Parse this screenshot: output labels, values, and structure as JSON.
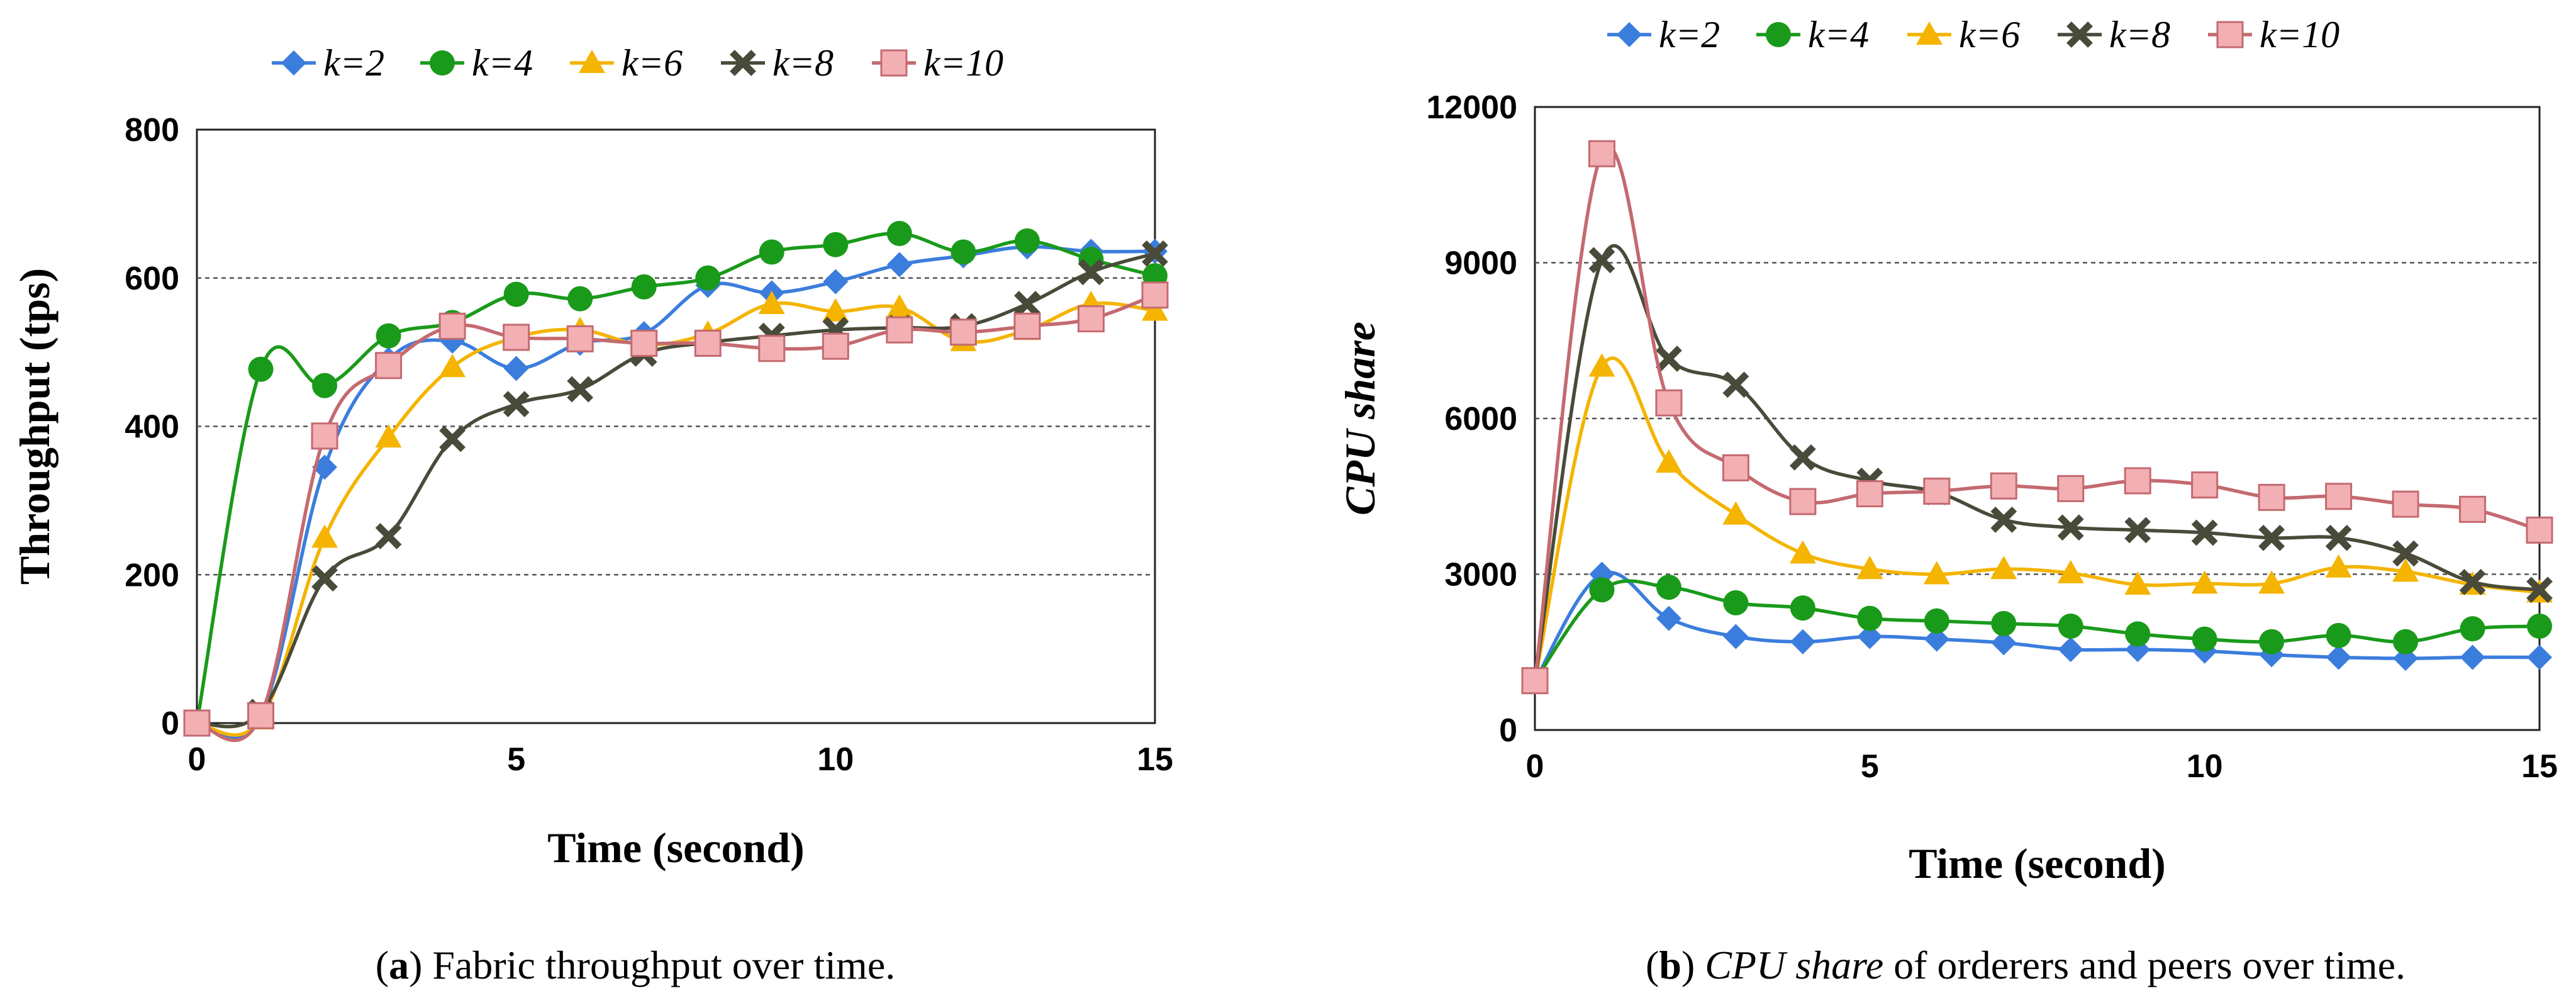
{
  "legend_labels": [
    "k=2",
    "k=4",
    "k=6",
    "k=8",
    "k=10"
  ],
  "series_styles": [
    {
      "name": "k=2",
      "color": "#3b7ddd",
      "marker": "diamond"
    },
    {
      "name": "k=4",
      "color": "#1a9a1a",
      "marker": "circle"
    },
    {
      "name": "k=6",
      "color": "#f4b400",
      "marker": "triangle"
    },
    {
      "name": "k=8",
      "color": "#4a4a3a",
      "marker": "x"
    },
    {
      "name": "k=10",
      "color": "#c46a70",
      "marker": "square",
      "fill": "#f2b0b4"
    }
  ],
  "chart_data": [
    {
      "type": "line",
      "x": [
        0,
        1,
        2,
        3,
        4,
        5,
        6,
        7,
        8,
        9,
        10,
        11,
        12,
        13,
        14,
        15
      ],
      "xlim": [
        0,
        15
      ],
      "xticks": [
        0,
        5,
        10,
        15
      ],
      "ylim": [
        0,
        800
      ],
      "yticks": [
        0,
        200,
        400,
        600,
        800
      ],
      "xlabel": "Time (second)",
      "ylabel": "Throughput (tps)",
      "grid": "horizontal dashed",
      "series": [
        {
          "name": "k=2",
          "values": [
            0,
            10,
            345,
            490,
            515,
            478,
            512,
            525,
            590,
            580,
            595,
            618,
            630,
            642,
            636,
            636
          ]
        },
        {
          "name": "k=4",
          "values": [
            0,
            477,
            455,
            522,
            540,
            578,
            572,
            588,
            600,
            635,
            645,
            660,
            635,
            650,
            625,
            603
          ]
        },
        {
          "name": "k=6",
          "values": [
            0,
            5,
            250,
            385,
            480,
            520,
            530,
            510,
            525,
            565,
            555,
            560,
            515,
            530,
            565,
            556
          ]
        },
        {
          "name": "k=8",
          "values": [
            0,
            15,
            195,
            252,
            383,
            430,
            450,
            498,
            513,
            522,
            530,
            533,
            535,
            565,
            608,
            633
          ]
        },
        {
          "name": "k=10",
          "values": [
            0,
            10,
            387,
            482,
            535,
            520,
            518,
            512,
            512,
            505,
            508,
            530,
            527,
            535,
            545,
            577
          ]
        }
      ],
      "caption_label": "a",
      "caption_text": " Fabric throughput over time."
    },
    {
      "type": "line",
      "x": [
        0,
        1,
        2,
        3,
        4,
        5,
        6,
        7,
        8,
        9,
        10,
        11,
        12,
        13,
        14,
        15
      ],
      "xlim": [
        0,
        15
      ],
      "xticks": [
        0,
        5,
        10,
        15
      ],
      "ylim": [
        0,
        12000
      ],
      "yticks": [
        0,
        3000,
        6000,
        9000,
        12000
      ],
      "xlabel": "Time (second)",
      "ylabel": "CPU share",
      "grid": "horizontal dashed",
      "series": [
        {
          "name": "k=2",
          "values": [
            950,
            3000,
            2150,
            1800,
            1700,
            1800,
            1750,
            1680,
            1550,
            1550,
            1520,
            1450,
            1400,
            1380,
            1400,
            1400
          ]
        },
        {
          "name": "k=4",
          "values": [
            950,
            2700,
            2750,
            2450,
            2350,
            2150,
            2100,
            2050,
            2000,
            1850,
            1750,
            1700,
            1820,
            1700,
            1950,
            2000
          ]
        },
        {
          "name": "k=6",
          "values": [
            950,
            7000,
            5150,
            4150,
            3400,
            3100,
            3000,
            3100,
            3020,
            2800,
            2820,
            2820,
            3130,
            3050,
            2800,
            2650
          ]
        },
        {
          "name": "k=8",
          "values": [
            950,
            9050,
            7150,
            6650,
            5250,
            4800,
            4580,
            4050,
            3900,
            3850,
            3800,
            3700,
            3700,
            3400,
            2850,
            2700
          ]
        },
        {
          "name": "k=10",
          "values": [
            950,
            11100,
            6300,
            5050,
            4400,
            4550,
            4600,
            4700,
            4650,
            4800,
            4720,
            4480,
            4500,
            4350,
            4250,
            3850
          ]
        }
      ],
      "caption_label": "b",
      "caption_italic": "CPU share",
      "caption_text": " of orderers and peers over time."
    }
  ]
}
